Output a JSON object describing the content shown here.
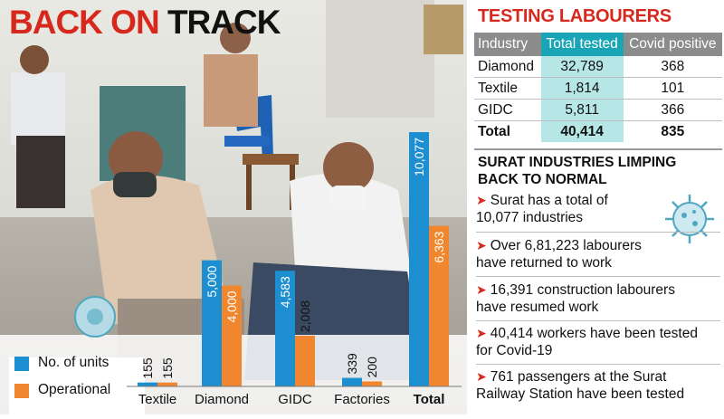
{
  "headline": {
    "part1": "BACK ON",
    "part2": "TRACK"
  },
  "colors": {
    "units": "#1d8fd0",
    "operational": "#f0872f",
    "accent_red": "#d7281e",
    "teal": "#19a5b5",
    "teal_light": "#b7e6e6",
    "gray": "#8c8c8c"
  },
  "chart_data": {
    "type": "bar",
    "categories": [
      "Textile",
      "Diamond",
      "GIDC",
      "Factories",
      "Total"
    ],
    "series": [
      {
        "name": "No. of units",
        "values": [
          155,
          5000,
          4583,
          339,
          10077
        ]
      },
      {
        "name": "Operational",
        "values": [
          155,
          4000,
          2008,
          200,
          6363
        ]
      }
    ],
    "value_labels": [
      [
        "155",
        "5,000",
        "4,583",
        "339",
        "10,077"
      ],
      [
        "155",
        "4,000",
        "2,008",
        "200",
        "6,363"
      ]
    ],
    "ylim": [
      0,
      10077
    ],
    "legend_position": "bottom-left",
    "grid": false
  },
  "testing": {
    "title": "TESTING LABOURERS",
    "headers": [
      "Industry",
      "Total tested",
      "Covid positive"
    ],
    "rows": [
      [
        "Diamond",
        "32,789",
        "368"
      ],
      [
        "Textile",
        "1,814",
        "101"
      ],
      [
        "GIDC",
        "5,811",
        "366"
      ],
      [
        "Total",
        "40,414",
        "835"
      ]
    ]
  },
  "sidebar": {
    "title": "SURAT INDUSTRIES LIMPING BACK TO NORMAL",
    "items": [
      {
        "line1": "Surat has a total of",
        "line2": "10,077 industries"
      },
      {
        "line1": "Over 6,81,223 labourers",
        "line2": "have returned to work"
      },
      {
        "line1": "16,391 construction labourers",
        "line2": "have resumed work"
      },
      {
        "line1": "40,414 workers have been tested",
        "line2": "for Covid-19"
      },
      {
        "line1": "761 passengers at the Surat",
        "line2": "Railway Station have been tested"
      }
    ]
  }
}
